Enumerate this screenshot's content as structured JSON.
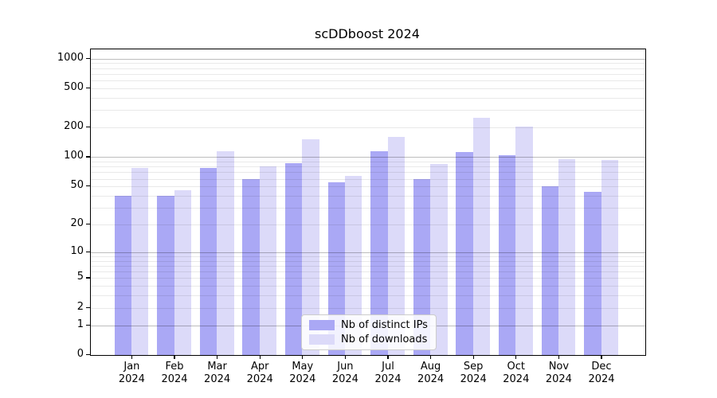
{
  "chart_data": {
    "type": "bar",
    "title": "scDDboost 2024",
    "categories": [
      "Jan",
      "Feb",
      "Mar",
      "Apr",
      "May",
      "Jun",
      "Jul",
      "Aug",
      "Sep",
      "Oct",
      "Nov",
      "Dec"
    ],
    "category_year": "2024",
    "series": [
      {
        "name": "Nb of distinct IPs",
        "color": "#aaa8f5",
        "values": [
          40,
          40,
          78,
          60,
          87,
          55,
          115,
          59,
          112,
          105,
          50,
          44
        ]
      },
      {
        "name": "Nb of downloads",
        "color": "#dcdaf9",
        "values": [
          78,
          46,
          115,
          80,
          152,
          64,
          162,
          85,
          250,
          205,
          96,
          93
        ]
      }
    ],
    "yscale": "log10(value+1)",
    "yticks": [
      0,
      1,
      2,
      5,
      10,
      20,
      50,
      100,
      200,
      500,
      1000
    ],
    "decade_ticks": [
      1,
      10,
      100,
      1000
    ],
    "ylim": [
      0,
      1244
    ],
    "xlabel": "",
    "ylabel": "",
    "grid": "major and minor horizontal gridlines drawn above bars",
    "legend_position": "lower center"
  },
  "colors": {
    "grid_major": "rgba(0,0,0,0.26)",
    "grid_minor": "rgba(0,0,0,0.085)",
    "axis": "#000000",
    "legend_border": "#cccccc"
  }
}
